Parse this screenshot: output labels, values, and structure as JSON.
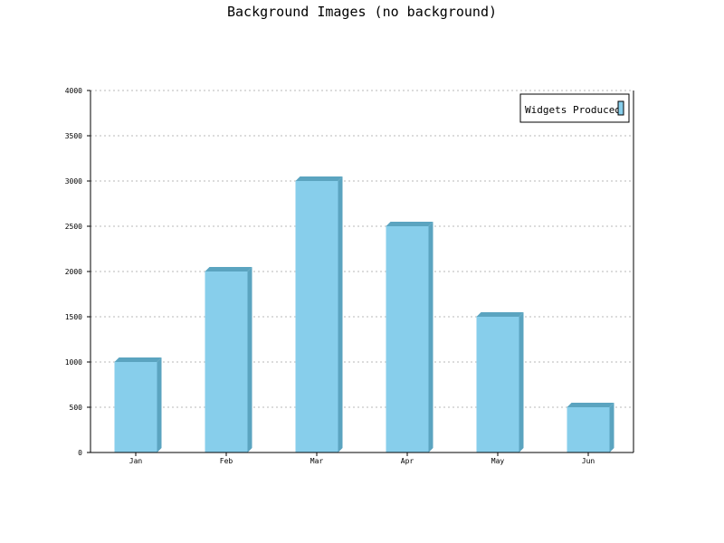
{
  "chart_data": {
    "type": "bar",
    "title": "Background Images (no background)",
    "categories": [
      "Jan",
      "Feb",
      "Mar",
      "Apr",
      "May",
      "Jun"
    ],
    "series": [
      {
        "name": "Widgets Produced",
        "values": [
          1000,
          2000,
          3000,
          2500,
          1500,
          500
        ]
      }
    ],
    "xlabel": "",
    "ylabel": "",
    "ylim": [
      0,
      4000
    ],
    "yticks": [
      0,
      500,
      1000,
      1500,
      2000,
      2500,
      3000,
      3500,
      4000
    ],
    "grid": true,
    "legend_position": "top-right",
    "colors": {
      "bar": "#87ceeb",
      "bar_shade": "#5ba4c0",
      "grid": "#b8b8b8",
      "axis": "#000000"
    }
  }
}
